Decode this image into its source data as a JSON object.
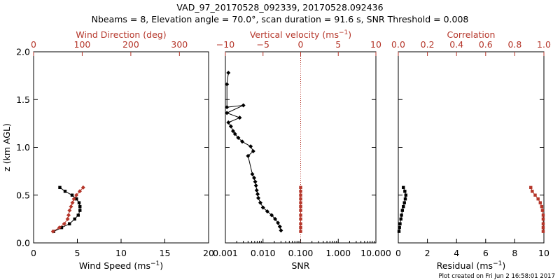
{
  "header": {
    "title": "VAD_97_20170528_092339, 20170528.092436",
    "subtitle": "Nbeams = 8, Elevation angle = 70.0°, scan duration = 91.6 s, SNR Threshold = 0.008"
  },
  "footer": {
    "note": "Plot created on Fri Jun  2 16:58:01 2017"
  },
  "colors": {
    "axis": "#000000",
    "accent": "#b5362a"
  },
  "chart_data": [
    {
      "type": "line",
      "panel": "left",
      "ylabel": "z (km AGL)",
      "ylim": [
        0,
        2.0
      ],
      "yticks": [
        0.0,
        0.5,
        1.0,
        1.5,
        2.0
      ],
      "ytick_labels": [
        "0.0",
        "0.5",
        "1.0",
        "1.5",
        "2.0"
      ],
      "bottom_axis": {
        "label_text": "Wind Speed (ms",
        "label_sup": "−1",
        "label_tail": ")",
        "range": [
          0,
          20
        ],
        "ticks": [
          0,
          5,
          10,
          15,
          20
        ],
        "tick_labels": [
          "0",
          "5",
          "10",
          "15",
          "20"
        ],
        "scale": "linear",
        "color": "#000000"
      },
      "top_axis": {
        "label_text": "Wind Direction (deg)",
        "label_sup": "",
        "label_tail": "",
        "range": [
          0,
          360
        ],
        "ticks": [
          0,
          100,
          200,
          300
        ],
        "tick_labels": [
          "0",
          "100",
          "200",
          "300"
        ],
        "scale": "linear",
        "color": "#b5362a"
      },
      "series": [
        {
          "axis": "bottom",
          "color": "#000000",
          "marker": "square",
          "x": [
            2.3,
            3.2,
            4.1,
            4.7,
            5.1,
            5.3,
            5.3,
            5.2,
            4.9,
            4.4,
            3.6,
            3.0
          ],
          "y": [
            0.12,
            0.16,
            0.2,
            0.25,
            0.29,
            0.34,
            0.38,
            0.42,
            0.46,
            0.5,
            0.54,
            0.58
          ]
        },
        {
          "axis": "top",
          "color": "#b5362a",
          "marker": "diamond",
          "x": [
            40,
            53,
            63,
            70,
            72,
            74,
            77,
            80,
            83,
            88,
            95,
            102
          ],
          "y": [
            0.12,
            0.16,
            0.2,
            0.25,
            0.29,
            0.34,
            0.38,
            0.42,
            0.46,
            0.5,
            0.54,
            0.58
          ]
        }
      ]
    },
    {
      "type": "line",
      "panel": "middle",
      "ylim": [
        0,
        2.0
      ],
      "yticks": [
        0.0,
        0.5,
        1.0,
        1.5,
        2.0
      ],
      "bottom_axis": {
        "label_text": "SNR",
        "label_sup": "",
        "label_tail": "",
        "range": [
          0.001,
          10
        ],
        "ticks": [
          0.001,
          0.01,
          0.1,
          1,
          10
        ],
        "tick_labels": [
          "0.001",
          "0.010",
          "0.100",
          "1.000",
          "10.000"
        ],
        "scale": "log",
        "color": "#000000"
      },
      "top_axis": {
        "label_text": "Vertical velocity (ms",
        "label_sup": "−1",
        "label_tail": ")",
        "range": [
          -10,
          10
        ],
        "ticks": [
          -10,
          -5,
          0,
          5,
          10
        ],
        "tick_labels": [
          "−10",
          "−5",
          "0",
          "5",
          "10"
        ],
        "scale": "linear",
        "color": "#b5362a"
      },
      "reference_line": {
        "axis": "top",
        "value": 0,
        "color": "#b5362a",
        "style": "dotted"
      },
      "series": [
        {
          "axis": "bottom",
          "color": "#000000",
          "marker": "diamond",
          "x": [
            0.03,
            0.028,
            0.025,
            0.021,
            0.017,
            0.013,
            0.01,
            0.0085,
            0.0075,
            0.0072,
            0.0068,
            0.0065,
            0.0062,
            0.0058,
            0.0052,
            0.004,
            0.0055,
            0.0047,
            0.0028,
            0.0022,
            0.0018,
            0.0016,
            0.0014,
            0.0012,
            0.0024,
            0.0011,
            0.003,
            0.0011,
            0.0011,
            0.0012
          ],
          "y": [
            0.13,
            0.17,
            0.21,
            0.25,
            0.29,
            0.33,
            0.37,
            0.42,
            0.47,
            0.51,
            0.55,
            0.6,
            0.64,
            0.68,
            0.72,
            0.91,
            0.96,
            1.01,
            1.06,
            1.1,
            1.14,
            1.17,
            1.22,
            1.26,
            1.31,
            1.36,
            1.44,
            1.42,
            1.66,
            1.78
          ]
        },
        {
          "axis": "top",
          "color": "#b5362a",
          "marker": "square",
          "x": [
            0.0,
            0.0,
            0.0,
            0.0,
            0.0,
            0.0,
            0.0,
            0.0,
            0.0,
            0.0,
            0.0,
            0.0
          ],
          "y": [
            0.12,
            0.16,
            0.2,
            0.25,
            0.29,
            0.34,
            0.38,
            0.42,
            0.46,
            0.5,
            0.54,
            0.58
          ]
        }
      ]
    },
    {
      "type": "line",
      "panel": "right",
      "ylim": [
        0,
        2.0
      ],
      "yticks": [
        0.0,
        0.5,
        1.0,
        1.5,
        2.0
      ],
      "bottom_axis": {
        "label_text": "Residual (ms",
        "label_sup": "−1",
        "label_tail": ")",
        "range": [
          0,
          10
        ],
        "ticks": [
          0,
          2,
          4,
          6,
          8,
          10
        ],
        "tick_labels": [
          "0",
          "2",
          "4",
          "6",
          "8",
          "10"
        ],
        "scale": "linear",
        "color": "#000000"
      },
      "top_axis": {
        "label_text": "Correlation",
        "label_sup": "",
        "label_tail": "",
        "range": [
          0,
          1.0
        ],
        "ticks": [
          0,
          0.2,
          0.4,
          0.6,
          0.8,
          1.0
        ],
        "tick_labels": [
          "0.0",
          "0.2",
          "0.4",
          "0.6",
          "0.8",
          "1.0"
        ],
        "scale": "linear",
        "color": "#b5362a"
      },
      "series": [
        {
          "axis": "bottom",
          "color": "#000000",
          "marker": "square",
          "x": [
            0.05,
            0.08,
            0.12,
            0.18,
            0.22,
            0.28,
            0.35,
            0.42,
            0.48,
            0.52,
            0.45,
            0.35
          ],
          "y": [
            0.12,
            0.16,
            0.2,
            0.25,
            0.29,
            0.34,
            0.38,
            0.42,
            0.46,
            0.5,
            0.54,
            0.58
          ]
        },
        {
          "axis": "top",
          "color": "#b5362a",
          "marker": "square",
          "x": [
            0.995,
            0.995,
            0.995,
            0.995,
            0.995,
            0.99,
            0.985,
            0.975,
            0.96,
            0.94,
            0.92,
            0.91
          ],
          "y": [
            0.12,
            0.16,
            0.2,
            0.25,
            0.29,
            0.34,
            0.38,
            0.42,
            0.46,
            0.5,
            0.54,
            0.58
          ]
        }
      ]
    }
  ]
}
